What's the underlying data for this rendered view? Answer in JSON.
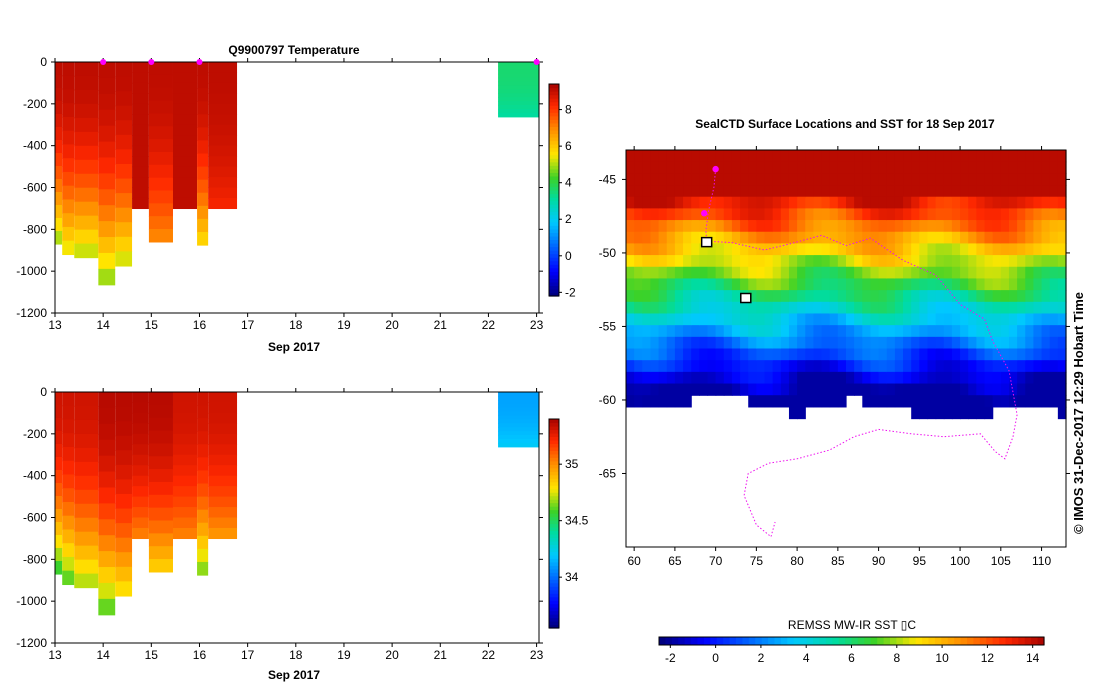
{
  "chart_data": [
    {
      "id": "temperature",
      "type": "heatmap",
      "title": "Q9900797  Temperature",
      "xlabel": "Sep 2017",
      "ylabel": "",
      "xlim": [
        13,
        23.05
      ],
      "ylim": [
        -1200,
        0
      ],
      "x_ticks": [
        "13",
        "14",
        "15",
        "16",
        "17",
        "18",
        "19",
        "20",
        "21",
        "22",
        "23"
      ],
      "y_ticks": [
        "0",
        "-200",
        "-400",
        "-600",
        "-800",
        "-1000",
        "-1200"
      ],
      "colorbar": {
        "min": -2.2,
        "max": 9.4,
        "ticks": [
          "-2",
          "0",
          "2",
          "4",
          "6",
          "8"
        ]
      },
      "profiles": [
        {
          "x0": 13.0,
          "x1": 13.15,
          "max_depth": -870,
          "top_value": 9,
          "bottom_value": 4.6
        },
        {
          "x0": 13.15,
          "x1": 13.4,
          "max_depth": -920,
          "top_value": 9,
          "bottom_value": 5.1
        },
        {
          "x0": 13.4,
          "x1": 13.9,
          "max_depth": -935,
          "top_value": 9,
          "bottom_value": 4.8
        },
        {
          "x0": 13.9,
          "x1": 14.25,
          "max_depth": -1065,
          "top_value": 9,
          "bottom_value": 4.5
        },
        {
          "x0": 14.25,
          "x1": 14.6,
          "max_depth": -975,
          "top_value": 9,
          "bottom_value": 4.9
        },
        {
          "x0": 14.6,
          "x1": 14.95,
          "max_depth": -700,
          "top_value": 9,
          "bottom_value": 9
        },
        {
          "x0": 14.95,
          "x1": 15.45,
          "max_depth": -860,
          "top_value": 9,
          "bottom_value": 6.8
        },
        {
          "x0": 15.45,
          "x1": 15.95,
          "max_depth": -700,
          "top_value": 9,
          "bottom_value": 9
        },
        {
          "x0": 15.95,
          "x1": 16.18,
          "max_depth": -875,
          "top_value": 9,
          "bottom_value": 5.5
        },
        {
          "x0": 16.18,
          "x1": 16.78,
          "max_depth": -700,
          "top_value": 9,
          "bottom_value": 8.2
        },
        {
          "x0": 22.2,
          "x1": 23.05,
          "max_depth": -262,
          "top_value": 3.5,
          "bottom_value": 3.0
        }
      ],
      "surface_markers": [
        14.0,
        15.0,
        16.0,
        23.0
      ]
    },
    {
      "id": "salinity",
      "type": "heatmap",
      "title": "",
      "xlabel": "Sep 2017",
      "ylabel": "",
      "xlim": [
        13,
        23.05
      ],
      "ylim": [
        -1200,
        0
      ],
      "x_ticks": [
        "13",
        "14",
        "15",
        "16",
        "17",
        "18",
        "19",
        "20",
        "21",
        "22",
        "23"
      ],
      "y_ticks": [
        "0",
        "-200",
        "-400",
        "-600",
        "-800",
        "-1000",
        "-1200"
      ],
      "colorbar": {
        "min": 33.55,
        "max": 35.4,
        "ticks": [
          "34",
          "34.5",
          "35"
        ]
      },
      "profiles": [
        {
          "x0": 13.0,
          "x1": 13.15,
          "max_depth": -870,
          "top_value": 35.3,
          "bottom_value": 34.5
        },
        {
          "x0": 13.15,
          "x1": 13.4,
          "max_depth": -920,
          "top_value": 35.3,
          "bottom_value": 34.55
        },
        {
          "x0": 13.4,
          "x1": 13.9,
          "max_depth": -935,
          "top_value": 35.3,
          "bottom_value": 34.65
        },
        {
          "x0": 13.9,
          "x1": 14.25,
          "max_depth": -1065,
          "top_value": 35.35,
          "bottom_value": 34.55
        },
        {
          "x0": 14.25,
          "x1": 14.6,
          "max_depth": -975,
          "top_value": 35.35,
          "bottom_value": 34.75
        },
        {
          "x0": 14.6,
          "x1": 14.95,
          "max_depth": -700,
          "top_value": 35.35,
          "bottom_value": 35.0
        },
        {
          "x0": 14.95,
          "x1": 15.45,
          "max_depth": -860,
          "top_value": 35.35,
          "bottom_value": 34.8
        },
        {
          "x0": 15.45,
          "x1": 15.95,
          "max_depth": -700,
          "top_value": 35.3,
          "bottom_value": 35.0
        },
        {
          "x0": 15.95,
          "x1": 16.18,
          "max_depth": -875,
          "top_value": 35.3,
          "bottom_value": 34.6
        },
        {
          "x0": 16.18,
          "x1": 16.78,
          "max_depth": -700,
          "top_value": 35.3,
          "bottom_value": 34.95
        },
        {
          "x0": 22.2,
          "x1": 23.05,
          "max_depth": -262,
          "top_value": 34.1,
          "bottom_value": 34.2
        }
      ]
    },
    {
      "id": "sst_map",
      "type": "heatmap",
      "title": "SealCTD Surface Locations and SST for 18 Sep 2017",
      "xlim": [
        59,
        113
      ],
      "ylim": [
        -70,
        -43
      ],
      "x_ticks": [
        "60",
        "65",
        "70",
        "75",
        "80",
        "85",
        "90",
        "95",
        "100",
        "105",
        "110"
      ],
      "y_ticks": [
        "-45",
        "-50",
        "-55",
        "-60",
        "-65"
      ],
      "colorbar": {
        "label": "REMSS MW-IR SST ▯C",
        "min": -2.5,
        "max": 14.5,
        "ticks": [
          "-2",
          "0",
          "2",
          "4",
          "6",
          "8",
          "10",
          "12",
          "14"
        ]
      },
      "track": [
        [
          70,
          -44.3
        ],
        [
          69.8,
          -45.5
        ],
        [
          69.1,
          -47.2
        ],
        [
          68.8,
          -48.5
        ],
        [
          68.9,
          -49.2
        ],
        [
          72,
          -49.3
        ],
        [
          76,
          -49.8
        ],
        [
          79,
          -49.4
        ],
        [
          83,
          -48.8
        ],
        [
          86,
          -49.5
        ],
        [
          89,
          -49.0
        ],
        [
          93,
          -50.5
        ],
        [
          97,
          -51.5
        ],
        [
          100,
          -53.5
        ],
        [
          103,
          -54.5
        ],
        [
          104,
          -56
        ],
        [
          106,
          -58
        ],
        [
          107,
          -61
        ],
        [
          106.5,
          -62.5
        ],
        [
          105.5,
          -64
        ],
        [
          104.3,
          -63.5
        ],
        [
          102.5,
          -62.3
        ],
        [
          98,
          -62.5
        ],
        [
          94,
          -62.3
        ],
        [
          90,
          -62.0
        ],
        [
          87,
          -62.5
        ],
        [
          84,
          -63.4
        ],
        [
          80,
          -64
        ],
        [
          76.5,
          -64.3
        ],
        [
          74,
          -65
        ],
        [
          73.5,
          -66.5
        ],
        [
          75,
          -68.5
        ],
        [
          76.8,
          -69.3
        ],
        [
          77.3,
          -68.3
        ]
      ],
      "surface_points": [
        [
          70,
          -44.3
        ],
        [
          68.6,
          -47.3
        ]
      ],
      "animal_locations": [
        [
          68.9,
          -49.3
        ],
        [
          73.7,
          -53.1
        ]
      ]
    }
  ],
  "side_text": "© IMOS 31-Dec-2017 12:29 Hobart Time",
  "colors": {
    "marker": "#ff00ff",
    "track": "#ee11ee"
  }
}
